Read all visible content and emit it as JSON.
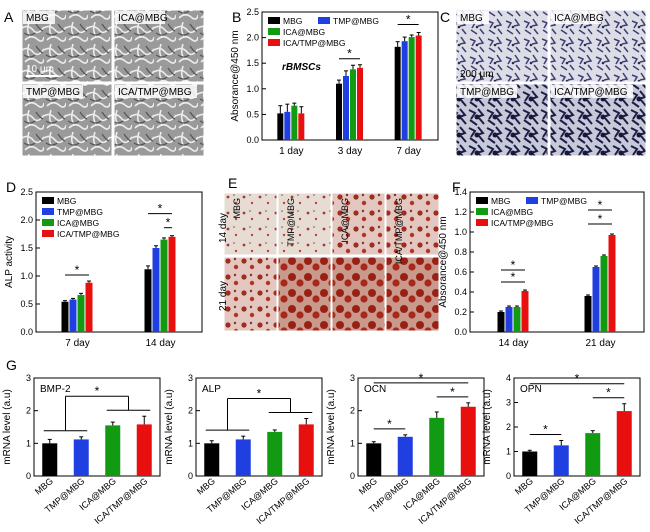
{
  "panels": {
    "A": {
      "letter": "A",
      "labels": [
        "MBG",
        "ICA@MBG",
        "TMP@MBG",
        "ICA/TMP@MBG"
      ],
      "scale": "10 μm"
    },
    "C": {
      "letter": "C",
      "labels": [
        "MBG",
        "ICA@MBG",
        "TMP@MBG",
        "ICA/TMP@MBG"
      ],
      "scale": "200 μm"
    },
    "E": {
      "letter": "E",
      "row_labels": [
        "14 day",
        "21 day"
      ],
      "col_labels": [
        "MBG",
        "TMP@MBG",
        "ICA@MBG",
        "ICA/TMP@MBG"
      ]
    }
  },
  "colors": {
    "MBG": "#000000",
    "TMP@MBG": "#1f3fe0",
    "ICA@MBG": "#139a13",
    "ICA/TMP@MBG": "#e8100e"
  },
  "sig_marker": "*",
  "chart_data": [
    {
      "id": "B",
      "letter": "B",
      "type": "bar",
      "ylabel": "Absorance@450 nm",
      "ylim": [
        0,
        2.5
      ],
      "yticks": [
        "0.0",
        "0.5",
        "1.0",
        "1.5",
        "2.0",
        "2.5"
      ],
      "annotation": "rBMSCs",
      "legend_position": "top-left",
      "categories": [
        "1 day",
        "3 day",
        "7 day"
      ],
      "series": [
        {
          "name": "MBG",
          "values": [
            0.52,
            1.1,
            1.82
          ]
        },
        {
          "name": "TMP@MBG",
          "values": [
            0.55,
            1.25,
            1.93
          ]
        },
        {
          "name": "ICA@MBG",
          "values": [
            0.67,
            1.38,
            2.01
          ]
        },
        {
          "name": "ICA/TMP@MBG",
          "values": [
            0.52,
            1.41,
            2.04
          ]
        }
      ],
      "errors": [
        [
          0.15,
          0.15,
          0.05,
          0.13
        ],
        [
          0.07,
          0.1,
          0.08,
          0.06
        ],
        [
          0.1,
          0.08,
          0.04,
          0.06
        ]
      ]
    },
    {
      "id": "D",
      "letter": "D",
      "type": "bar",
      "ylabel": "ALP activity",
      "ylim": [
        0,
        2.5
      ],
      "yticks": [
        "0.0",
        "0.5",
        "1.0",
        "1.5",
        "2.0",
        "2.5"
      ],
      "legend_position": "top-left",
      "categories": [
        "7 day",
        "14 day"
      ],
      "series": [
        {
          "name": "MBG",
          "values": [
            0.54,
            1.12
          ]
        },
        {
          "name": "TMP@MBG",
          "values": [
            0.58,
            1.5
          ]
        },
        {
          "name": "ICA@MBG",
          "values": [
            0.66,
            1.65
          ]
        },
        {
          "name": "ICA/TMP@MBG",
          "values": [
            0.88,
            1.7
          ]
        }
      ],
      "errors": [
        [
          0.02,
          0.02,
          0.03,
          0.03
        ],
        [
          0.06,
          0.04,
          0.03,
          0.02
        ]
      ]
    },
    {
      "id": "F",
      "letter": "F",
      "type": "bar",
      "ylabel": "Absorance@450 nm",
      "ylim": [
        0,
        1.4
      ],
      "yticks": [
        "0.0",
        "0.2",
        "0.4",
        "0.6",
        "0.8",
        "1.0",
        "1.2",
        "1.4"
      ],
      "legend_position": "top-left",
      "categories": [
        "14 day",
        "21 day"
      ],
      "series": [
        {
          "name": "MBG",
          "values": [
            0.2,
            0.36
          ]
        },
        {
          "name": "TMP@MBG",
          "values": [
            0.25,
            0.65
          ]
        },
        {
          "name": "ICA@MBG",
          "values": [
            0.25,
            0.76
          ]
        },
        {
          "name": "ICA/TMP@MBG",
          "values": [
            0.41,
            0.97
          ]
        }
      ],
      "errors": [
        [
          0.01,
          0.01,
          0.01,
          0.01
        ],
        [
          0.01,
          0.01,
          0.01,
          0.01
        ]
      ]
    },
    {
      "id": "G1",
      "type": "bar",
      "annotation": "BMP-2",
      "ylabel": "mRNA level (a.u)",
      "ylim": [
        0,
        3
      ],
      "yticks": [
        "0",
        "1",
        "2",
        "3"
      ],
      "categories": [
        "MBG",
        "TMP@MBG",
        "ICA@MBG",
        "ICA/TMP@MBG"
      ],
      "values": [
        1.0,
        1.12,
        1.55,
        1.58
      ],
      "errors": [
        0.12,
        0.08,
        0.1,
        0.25
      ]
    },
    {
      "id": "G2",
      "type": "bar",
      "annotation": "ALP",
      "ylabel": "mRNA level (a.u)",
      "ylim": [
        0,
        3
      ],
      "yticks": [
        "0",
        "1",
        "2",
        "3"
      ],
      "categories": [
        "MBG",
        "TMP@MBG",
        "ICA@MBG",
        "ICA/TMP@MBG"
      ],
      "values": [
        1.0,
        1.12,
        1.35,
        1.58
      ],
      "errors": [
        0.08,
        0.1,
        0.06,
        0.18
      ]
    },
    {
      "id": "G3",
      "type": "bar",
      "annotation": "OCN",
      "ylabel": "mRNA level (a.u)",
      "ylim": [
        0,
        3
      ],
      "yticks": [
        "0",
        "1",
        "2",
        "3"
      ],
      "categories": [
        "MBG",
        "TMP@MBG",
        "ICA@MBG",
        "ICA/TMP@MBG"
      ],
      "values": [
        1.0,
        1.2,
        1.78,
        2.12
      ],
      "errors": [
        0.05,
        0.06,
        0.18,
        0.12
      ]
    },
    {
      "id": "G4",
      "type": "bar",
      "annotation": "OPN",
      "ylabel": "mRNA level (a.u)",
      "ylim": [
        0,
        4
      ],
      "yticks": [
        "0",
        "1",
        "2",
        "3",
        "4"
      ],
      "categories": [
        "MBG",
        "TMP@MBG",
        "ICA@MBG",
        "ICA/TMP@MBG"
      ],
      "values": [
        1.0,
        1.25,
        1.75,
        2.65
      ],
      "errors": [
        0.05,
        0.2,
        0.1,
        0.3
      ]
    }
  ]
}
